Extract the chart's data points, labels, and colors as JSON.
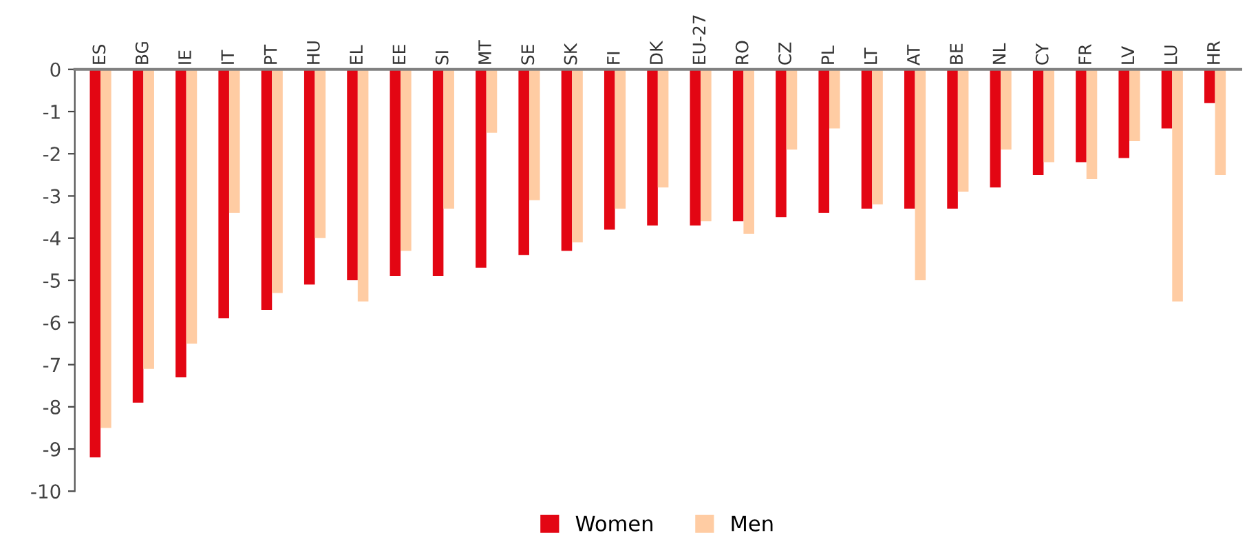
{
  "chart_data": {
    "type": "bar",
    "categories": [
      "ES",
      "BG",
      "IE",
      "IT",
      "PT",
      "HU",
      "EL",
      "EE",
      "SI",
      "MT",
      "SE",
      "SK",
      "FI",
      "DK",
      "EU-27",
      "RO",
      "CZ",
      "PL",
      "LT",
      "AT",
      "BE",
      "NL",
      "CY",
      "FR",
      "LV",
      "LU",
      "HR"
    ],
    "series": [
      {
        "name": "Women",
        "color": "#e30613",
        "values": [
          -9.2,
          -7.9,
          -7.3,
          -5.9,
          -5.7,
          -5.1,
          -5.0,
          -4.9,
          -4.9,
          -4.7,
          -4.4,
          -4.3,
          -3.8,
          -3.7,
          -3.7,
          -3.6,
          -3.5,
          -3.4,
          -3.3,
          -3.3,
          -3.3,
          -2.8,
          -2.5,
          -2.2,
          -2.1,
          -1.4,
          -0.8
        ]
      },
      {
        "name": "Men",
        "color": "#ffcca3",
        "values": [
          -8.5,
          -7.1,
          -6.5,
          -3.4,
          -5.3,
          -4.0,
          -5.5,
          -4.3,
          -3.3,
          -1.5,
          -3.1,
          -4.1,
          -3.3,
          -2.8,
          -3.6,
          -3.9,
          -1.9,
          -1.4,
          -3.2,
          -5.0,
          -2.9,
          -1.9,
          -2.2,
          -2.6,
          -1.7,
          -5.5,
          -2.5
        ]
      }
    ],
    "ylim": [
      -10,
      0
    ],
    "yticks": [
      -10,
      -9,
      -8,
      -7,
      -6,
      -5,
      -4,
      -3,
      -2,
      -1,
      0
    ],
    "grid": false,
    "legend": "bottom"
  }
}
